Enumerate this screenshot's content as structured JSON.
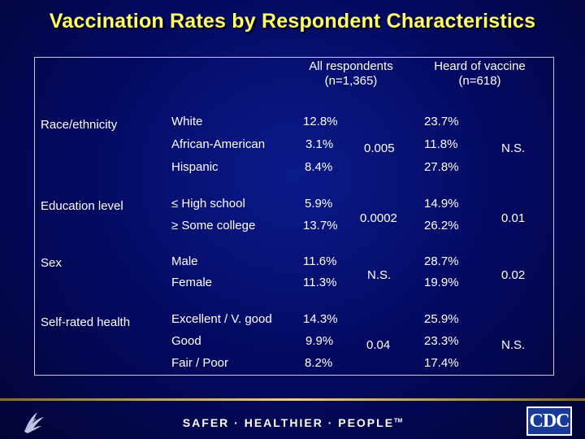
{
  "title": "Vaccination Rates by Respondent Characteristics",
  "header": {
    "col1": [
      "All respondents",
      "(n=1,365)"
    ],
    "col2": [
      "Heard of vaccine",
      "(n=618)"
    ]
  },
  "groups": [
    {
      "label": "Race/ethnicity",
      "rows": [
        {
          "category": "White",
          "all": "12.8%",
          "heard": "23.7%"
        },
        {
          "category": "African-American",
          "all": "3.1%",
          "heard": "11.8%"
        },
        {
          "category": "Hispanic",
          "all": "8.4%",
          "heard": "27.8%"
        }
      ],
      "p_all": "0.005",
      "p_heard": "N.S."
    },
    {
      "label": "Education level",
      "rows": [
        {
          "category": "≤ High school",
          "all": "5.9%",
          "heard": "14.9%"
        },
        {
          "category": "≥ Some college",
          "all": "13.7%",
          "heard": "26.2%"
        }
      ],
      "p_all": "0.0002",
      "p_heard": "0.01"
    },
    {
      "label": "Sex",
      "rows": [
        {
          "category": "Male",
          "all": "11.6%",
          "heard": "28.7%"
        },
        {
          "category": "Female",
          "all": "11.3%",
          "heard": "19.9%"
        }
      ],
      "p_all": "N.S.",
      "p_heard": "0.02"
    },
    {
      "label": "Self-rated health",
      "rows": [
        {
          "category": "Excellent / V. good",
          "all": "14.3%",
          "heard": "25.9%"
        },
        {
          "category": "Good",
          "all": "9.9%",
          "heard": "23.3%"
        },
        {
          "category": "Fair / Poor",
          "all": "8.2%",
          "heard": "17.4%"
        }
      ],
      "p_all": "0.04",
      "p_heard": "N.S."
    }
  ],
  "footer": {
    "slogan": "SAFER · HEALTHIER · PEOPLE",
    "trademark": "TM",
    "logo_text": "CDC"
  },
  "colors": {
    "title": "#ffff66",
    "background": "#03085e",
    "text": "#ffffff"
  }
}
